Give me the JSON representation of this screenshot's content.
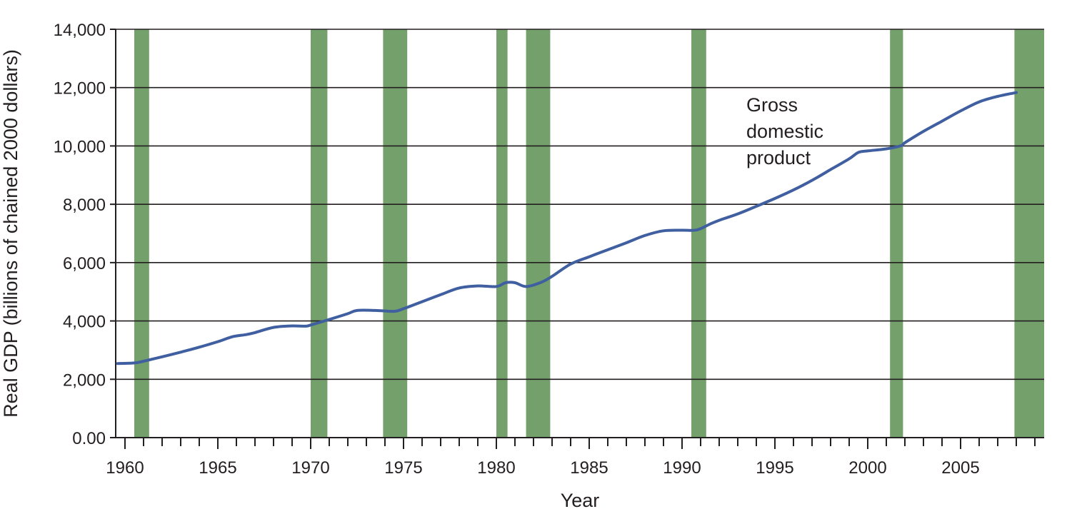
{
  "chart_data": {
    "type": "line",
    "xlabel": "Year",
    "ylabel": "Real GDP (billions of chained 2000 dollars)",
    "xlim": [
      1959.5,
      2009.5
    ],
    "ylim": [
      0,
      14000
    ],
    "x_tick_values": [
      1960,
      1965,
      1970,
      1975,
      1980,
      1985,
      1990,
      1995,
      2000,
      2005
    ],
    "x_tick_labels": [
      "1960",
      "1965",
      "1970",
      "1975",
      "1980",
      "1985",
      "1990",
      "1995",
      "2000",
      "2005"
    ],
    "y_tick_values": [
      0,
      2000,
      4000,
      6000,
      8000,
      10000,
      12000,
      14000
    ],
    "y_tick_labels": [
      "0.00",
      "2,000",
      "4,000",
      "6,000",
      "8,000",
      "10,000",
      "12,000",
      "14,000"
    ],
    "grid": "horizontal",
    "annotation": [
      "Gross",
      "domestic",
      "product"
    ],
    "colors": {
      "line": "#3f5fa0",
      "recession": "#74a06b",
      "grid": "#231f20"
    },
    "recessions": [
      [
        1960.5,
        1961.3
      ],
      [
        1970.0,
        1970.9
      ],
      [
        1973.9,
        1975.2
      ],
      [
        1980.0,
        1980.6
      ],
      [
        1981.6,
        1982.9
      ],
      [
        1990.5,
        1991.3
      ],
      [
        2001.2,
        2001.9
      ],
      [
        2007.9,
        2009.9
      ]
    ],
    "series": [
      {
        "x": [
          1959.6,
          1960.5,
          1961,
          1962,
          1963,
          1964,
          1965,
          1965.8,
          1966.5,
          1967,
          1968,
          1969,
          1969.7,
          1970,
          1971,
          1972,
          1972.5,
          1973.5,
          1974.5,
          1975,
          1976,
          1977,
          1978,
          1979,
          1980,
          1980.5,
          1981,
          1981.6,
          1982.4,
          1983,
          1984,
          1985,
          1986,
          1987,
          1988,
          1989,
          1990,
          1990.8,
          1991.5,
          1992,
          1993,
          1994,
          1995,
          1996,
          1997,
          1998,
          1999,
          1999.5,
          2000,
          2001,
          2001.8,
          2002,
          2003,
          2004,
          2005,
          2006,
          2007,
          2008
        ],
        "y": [
          2540,
          2560,
          2620,
          2770,
          2930,
          3100,
          3290,
          3460,
          3530,
          3600,
          3780,
          3830,
          3820,
          3860,
          4050,
          4250,
          4360,
          4360,
          4330,
          4420,
          4660,
          4900,
          5130,
          5200,
          5180,
          5310,
          5310,
          5180,
          5320,
          5530,
          5950,
          6200,
          6440,
          6680,
          6930,
          7090,
          7110,
          7120,
          7320,
          7450,
          7670,
          7930,
          8200,
          8490,
          8820,
          9190,
          9560,
          9780,
          9830,
          9900,
          10010,
          10110,
          10500,
          10850,
          11200,
          11510,
          11700,
          11830
        ]
      }
    ]
  }
}
